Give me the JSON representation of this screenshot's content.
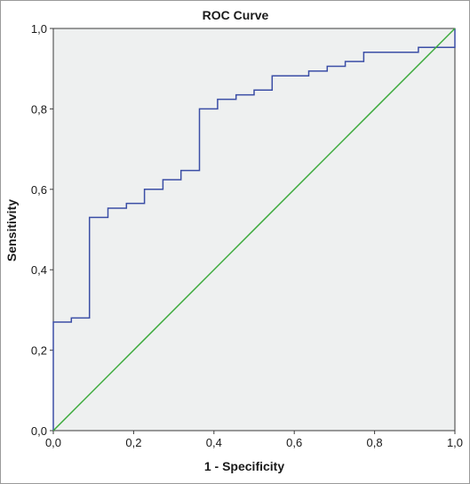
{
  "chart_data": {
    "type": "line",
    "title": "ROC Curve",
    "xlabel": "1 - Specificity",
    "ylabel": "Sensitivity",
    "xlim": [
      0,
      1
    ],
    "ylim": [
      0,
      1
    ],
    "x_ticks": [
      "0,0",
      "0,2",
      "0,4",
      "0,6",
      "0,8",
      "1,0"
    ],
    "y_ticks": [
      "0,0",
      "0,2",
      "0,4",
      "0,6",
      "0,8",
      "1,0"
    ],
    "grid": false,
    "plot_background": "#eef0f0",
    "series": [
      {
        "color": "#3b4ea6",
        "step": true,
        "points": [
          [
            0.0,
            0.0
          ],
          [
            0.0,
            0.27
          ],
          [
            0.045,
            0.27
          ],
          [
            0.045,
            0.28
          ],
          [
            0.09,
            0.28
          ],
          [
            0.09,
            0.53
          ],
          [
            0.136,
            0.53
          ],
          [
            0.136,
            0.553
          ],
          [
            0.182,
            0.553
          ],
          [
            0.182,
            0.565
          ],
          [
            0.227,
            0.565
          ],
          [
            0.227,
            0.6
          ],
          [
            0.273,
            0.6
          ],
          [
            0.273,
            0.624
          ],
          [
            0.318,
            0.624
          ],
          [
            0.318,
            0.647
          ],
          [
            0.364,
            0.647
          ],
          [
            0.364,
            0.8
          ],
          [
            0.409,
            0.8
          ],
          [
            0.409,
            0.824
          ],
          [
            0.455,
            0.824
          ],
          [
            0.455,
            0.835
          ],
          [
            0.5,
            0.835
          ],
          [
            0.5,
            0.847
          ],
          [
            0.545,
            0.847
          ],
          [
            0.545,
            0.882
          ],
          [
            0.636,
            0.882
          ],
          [
            0.636,
            0.894
          ],
          [
            0.682,
            0.894
          ],
          [
            0.682,
            0.906
          ],
          [
            0.727,
            0.906
          ],
          [
            0.727,
            0.918
          ],
          [
            0.773,
            0.918
          ],
          [
            0.773,
            0.941
          ],
          [
            0.909,
            0.941
          ],
          [
            0.909,
            0.953
          ],
          [
            1.0,
            0.953
          ],
          [
            1.0,
            1.0
          ]
        ]
      },
      {
        "color": "#3aaa3a",
        "step": false,
        "points": [
          [
            0,
            0
          ],
          [
            1,
            1
          ]
        ]
      }
    ]
  }
}
